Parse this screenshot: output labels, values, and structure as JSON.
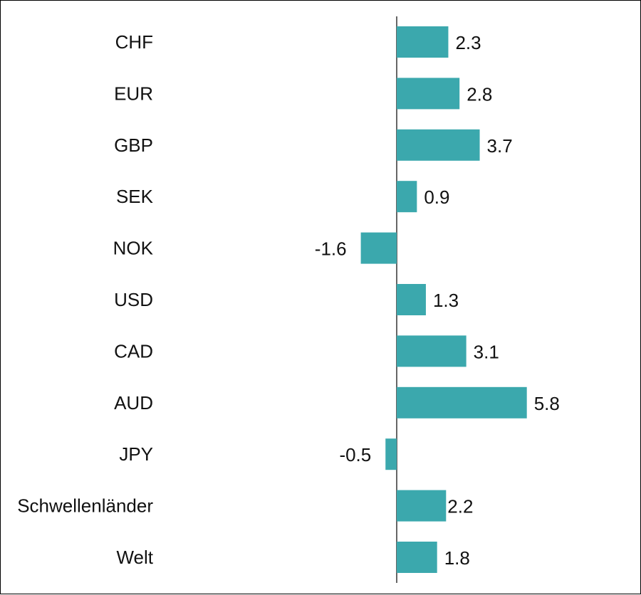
{
  "colors": {
    "bar": "#3ba8ad",
    "axis": "#000000",
    "text": "#111111",
    "border": "#000000"
  },
  "chart_data": {
    "type": "bar",
    "orientation": "horizontal",
    "title": "",
    "xlabel": "",
    "ylabel": "",
    "grid": false,
    "legend": "none",
    "xlim": [
      -3.2,
      6.8
    ],
    "categories": [
      "CHF",
      "EUR",
      "GBP",
      "SEK",
      "NOK",
      "USD",
      "CAD",
      "AUD",
      "JPY",
      "Schwellenländer",
      "Welt"
    ],
    "values": [
      2.3,
      2.8,
      3.7,
      0.9,
      -1.6,
      1.3,
      3.1,
      5.8,
      -0.5,
      2.2,
      1.8
    ],
    "value_labels": [
      "2.3",
      "2.8",
      "3.7",
      "0.9",
      "-1.6",
      "1.3",
      "3.1",
      "5.8",
      "-0.5",
      "2.2",
      "1.8"
    ]
  }
}
